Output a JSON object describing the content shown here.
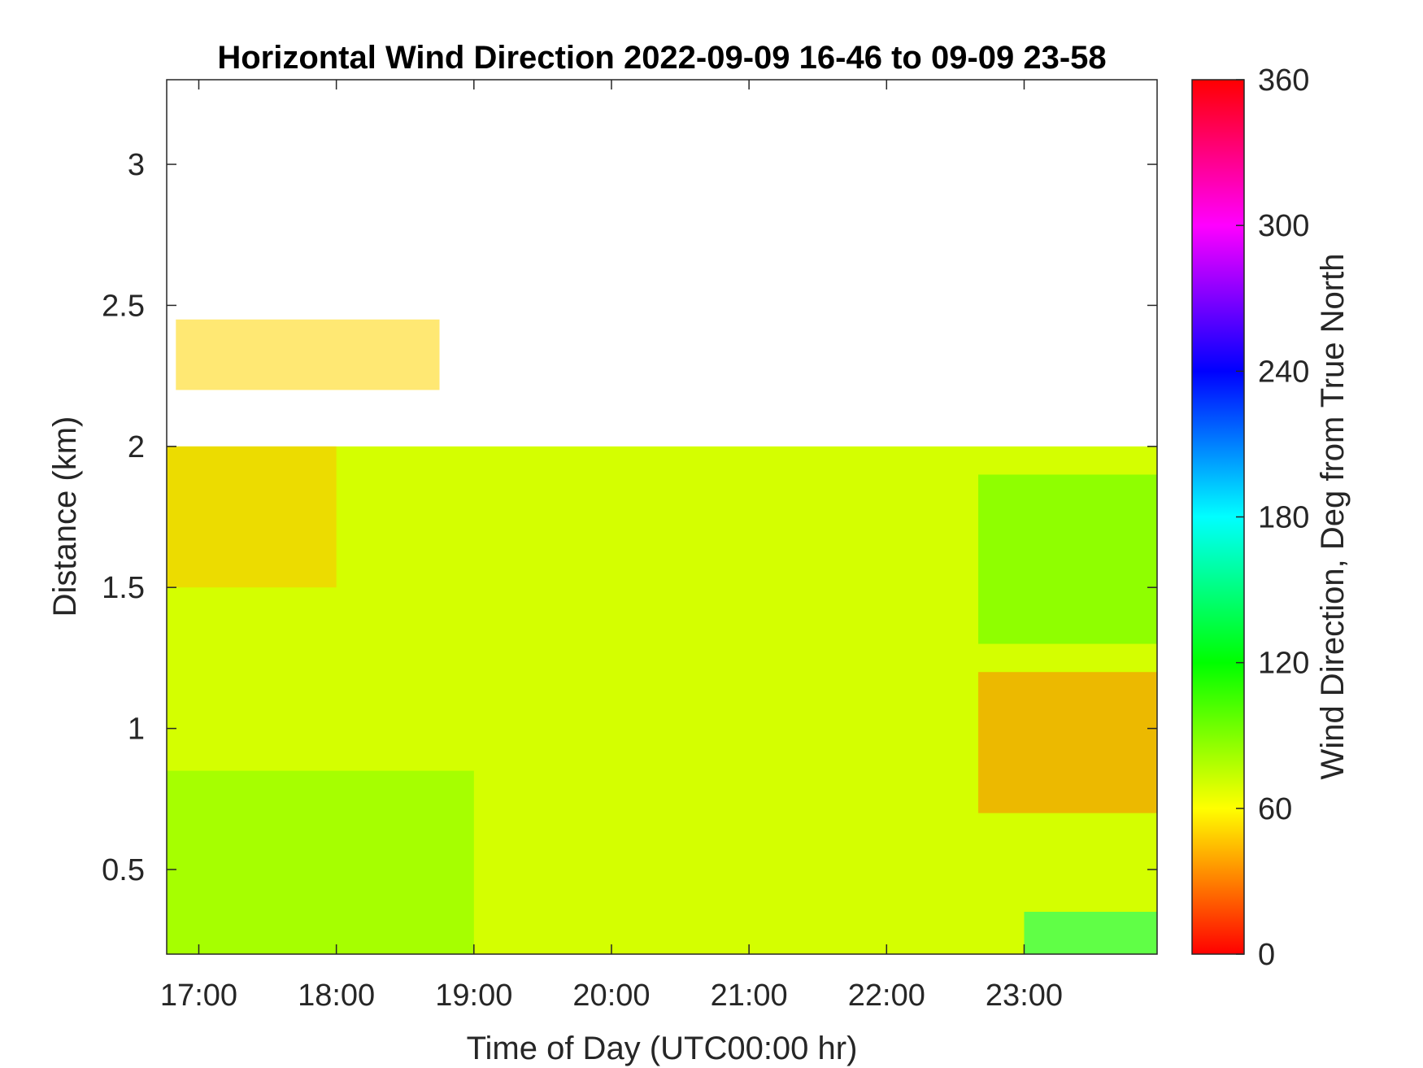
{
  "chart_data": {
    "type": "heatmap",
    "title": "Horizontal Wind Direction 2022-09-09 16-46 to 09-09 23-58",
    "xlabel": "Time of Day (UTC00:00 hr)",
    "ylabel": "Distance (km)",
    "colorbar_label": "Wind Direction, Deg from True North",
    "x_start": "16:46",
    "x_end": "23:58",
    "x_ticks": [
      "17:00",
      "18:00",
      "19:00",
      "20:00",
      "21:00",
      "22:00",
      "23:00"
    ],
    "ylim": [
      0.2,
      3.3
    ],
    "y_ticks": [
      0.5,
      1,
      1.5,
      2,
      2.5,
      3
    ],
    "y_tick_labels": [
      "0.5",
      "1",
      "1.5",
      "2",
      "2.5",
      "3"
    ],
    "clim": [
      0,
      360
    ],
    "colorbar_ticks": [
      0,
      60,
      120,
      180,
      240,
      300,
      360
    ],
    "colorbar_tick_labels": [
      "0",
      "60",
      "120",
      "180",
      "240",
      "300",
      "360"
    ],
    "colormap": [
      "#ff0000",
      "#ffff00",
      "#00ff00",
      "#00ffff",
      "#0000ff",
      "#ff00ff",
      "#ff0000"
    ],
    "regions": [
      {
        "t0": "16:46",
        "t1": "23:58",
        "z0": 0.2,
        "z1": 2.0,
        "dir": 70
      },
      {
        "t0": "16:46",
        "t1": "18:00",
        "z0": 1.5,
        "z1": 2.0,
        "dir": 45
      },
      {
        "t0": "16:50",
        "t1": "18:45",
        "z0": 2.2,
        "z1": 2.45,
        "dir": 50
      },
      {
        "t0": "22:40",
        "t1": "23:58",
        "z0": 0.7,
        "z1": 1.2,
        "dir": 30
      },
      {
        "t0": "22:40",
        "t1": "23:58",
        "z0": 1.3,
        "z1": 1.9,
        "dir": 100
      },
      {
        "t0": "23:00",
        "t1": "23:58",
        "z0": 0.2,
        "z1": 0.35,
        "dir": 150
      },
      {
        "t0": "16:46",
        "t1": "19:00",
        "z0": 0.2,
        "z1": 0.85,
        "dir": 90
      }
    ]
  }
}
